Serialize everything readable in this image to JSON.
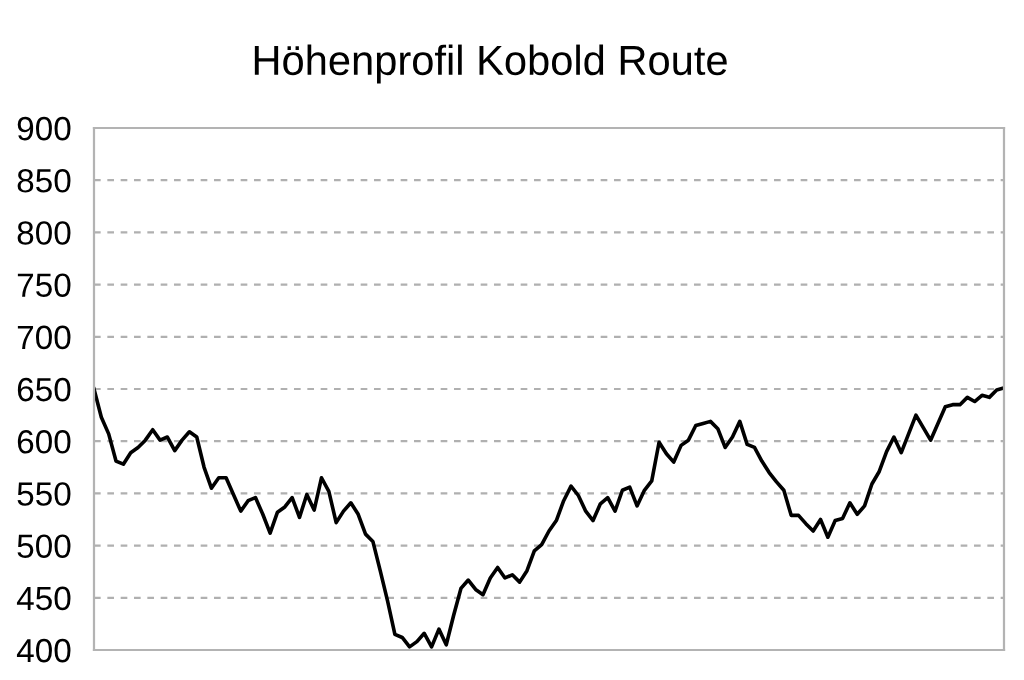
{
  "chart_data": {
    "type": "line",
    "title": "Höhenprofil Kobold Route",
    "categories": [
      null,
      null,
      null,
      null,
      null,
      null,
      null,
      null,
      null,
      null,
      null,
      null,
      null,
      null,
      null,
      null,
      null,
      null,
      null,
      null,
      null,
      null,
      null,
      null,
      null,
      null,
      null,
      null,
      null,
      null,
      null,
      null,
      null,
      null,
      null,
      null,
      null,
      null,
      null,
      null,
      null,
      null,
      null,
      null,
      null,
      null,
      null,
      null,
      null,
      null,
      null,
      null,
      null,
      null,
      null,
      null,
      null,
      null,
      null,
      null,
      null,
      null,
      null,
      null,
      null,
      null,
      null,
      null,
      null,
      null,
      null,
      null,
      null,
      null,
      null,
      null,
      null,
      null,
      null,
      null,
      null,
      null,
      null,
      null,
      null,
      null,
      null,
      null,
      null,
      null,
      null,
      null,
      null,
      null,
      null,
      null,
      null,
      null,
      null,
      null,
      null,
      null,
      null,
      null,
      null,
      null,
      null,
      null,
      null,
      null,
      null,
      null,
      null,
      null,
      null,
      null,
      null,
      null,
      null,
      null,
      null,
      null,
      null,
      null,
      null
    ],
    "series": [
      {
        "color": "#000000",
        "values": [
          650,
          623,
          607,
          581,
          578,
          589,
          594,
          601,
          611,
          601,
          604,
          591,
          601,
          609,
          604,
          575,
          555,
          565,
          565,
          549,
          533,
          543,
          546,
          530,
          512,
          532,
          537,
          546,
          527,
          549,
          534,
          565,
          552,
          522,
          533,
          541,
          530,
          511,
          504,
          476,
          447,
          415,
          412,
          403,
          408,
          416,
          403,
          420,
          405,
          433,
          459,
          467,
          458,
          453,
          469,
          479,
          469,
          472,
          465,
          476,
          495,
          501,
          514,
          524,
          543,
          557,
          548,
          533,
          524,
          540,
          546,
          533,
          553,
          556,
          538,
          553,
          562,
          599,
          588,
          580,
          596,
          601,
          615,
          617,
          619,
          612,
          594,
          604,
          619,
          597,
          594,
          581,
          570,
          561,
          553,
          529,
          529,
          521,
          514,
          525,
          508,
          524,
          526,
          541,
          530,
          538,
          559,
          571,
          590,
          604,
          589,
          607,
          625,
          613,
          601,
          617,
          633,
          635,
          635,
          642,
          638,
          644,
          642,
          649,
          651
        ]
      }
    ],
    "ylim": [
      400,
      900
    ],
    "yticks": [
      400,
      450,
      500,
      550,
      600,
      650,
      700,
      750,
      800,
      850,
      900
    ],
    "grid": "y",
    "tick_labels": "y",
    "marker": "none",
    "line_style": "solid",
    "legend": false
  }
}
